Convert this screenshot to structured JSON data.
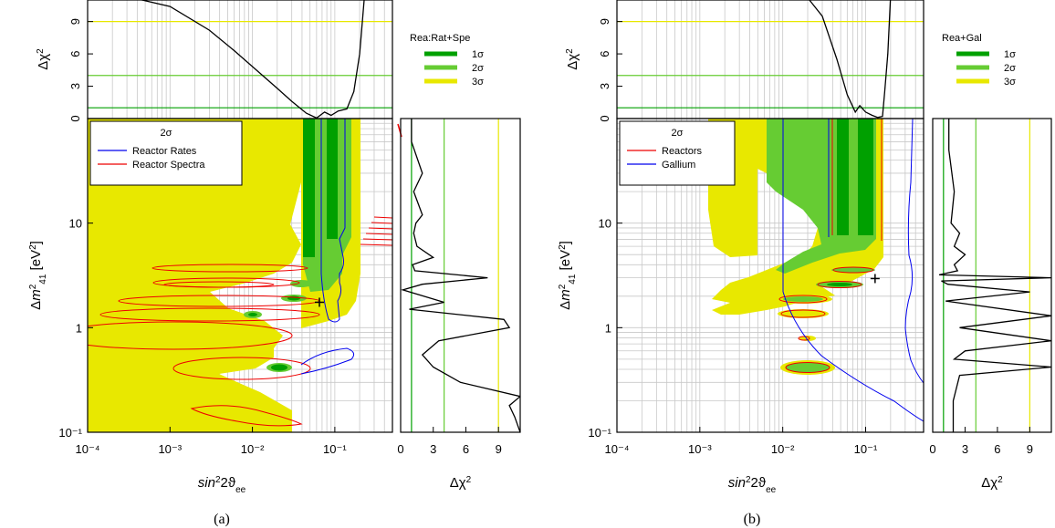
{
  "chart_data": [
    {
      "panel": "(a)",
      "type": "contour",
      "caption": "(a)",
      "xlabel_main": "sin²2ϑee",
      "ylabel_main": "Δm²41 [eV²]",
      "xlabel_side": "Δχ²",
      "ylabel_top": "Δχ²",
      "xaxis": {
        "scale": "log",
        "range": [
          0.0001,
          0.5
        ],
        "tick_labels": [
          "10⁻⁴",
          "10⁻³",
          "10⁻²",
          "10⁻¹"
        ]
      },
      "yaxis": {
        "scale": "log",
        "range": [
          0.1,
          100
        ],
        "tick_labels": [
          "10⁻¹",
          "1",
          "10"
        ]
      },
      "chi2_axis": {
        "range": [
          0,
          11
        ],
        "tick_labels": [
          "0",
          "3",
          "6",
          "9"
        ]
      },
      "sigma_levels": [
        1,
        4,
        9
      ],
      "legend_main": {
        "title": "2σ",
        "items": [
          {
            "label": "Reactor Rates",
            "color": "#0000ee"
          },
          {
            "label": "Reactor Spectra",
            "color": "#ee0000"
          }
        ]
      },
      "legend_conf": {
        "title": "Rea:Rat+Spe",
        "items": [
          {
            "label": "1σ",
            "color": "#00a000"
          },
          {
            "label": "2σ",
            "color": "#66cc33"
          },
          {
            "label": "3σ",
            "color": "#e8e800"
          }
        ]
      },
      "best_fit": {
        "x": 0.065,
        "y": 1.75
      },
      "top_curve": [
        [
          0.0001,
          11.5
        ],
        [
          0.0004,
          11.1
        ],
        [
          0.001,
          10.4
        ],
        [
          0.003,
          8.2
        ],
        [
          0.006,
          6.3
        ],
        [
          0.012,
          4.3
        ],
        [
          0.02,
          2.8
        ],
        [
          0.03,
          1.6
        ],
        [
          0.045,
          0.5
        ],
        [
          0.06,
          0.05
        ],
        [
          0.075,
          0.6
        ],
        [
          0.09,
          0.3
        ],
        [
          0.11,
          0.7
        ],
        [
          0.14,
          0.9
        ],
        [
          0.17,
          2.5
        ],
        [
          0.2,
          6
        ],
        [
          0.23,
          11.5
        ]
      ],
      "side_curve": [
        [
          1.0,
          100
        ],
        [
          1.0,
          60
        ],
        [
          2.0,
          30
        ],
        [
          1.2,
          20
        ],
        [
          2.0,
          12
        ],
        [
          1.4,
          10
        ],
        [
          1.2,
          8
        ],
        [
          1.5,
          6
        ],
        [
          3,
          4.7
        ],
        [
          1.1,
          4
        ],
        [
          1.3,
          3.5
        ],
        [
          8,
          3.0
        ],
        [
          2,
          2.6
        ],
        [
          0.2,
          2.3
        ],
        [
          4,
          1.75
        ],
        [
          0.8,
          1.5
        ],
        [
          9.5,
          1.2
        ],
        [
          10,
          1.0
        ],
        [
          3.5,
          0.75
        ],
        [
          2,
          0.55
        ],
        [
          3,
          0.42
        ],
        [
          5.5,
          0.3
        ],
        [
          11,
          0.22
        ],
        [
          10,
          0.18
        ],
        [
          10.5,
          0.14
        ],
        [
          11,
          0.1
        ]
      ]
    },
    {
      "panel": "(b)",
      "type": "contour",
      "caption": "(b)",
      "xlabel_main": "sin²2ϑee",
      "ylabel_main": "Δm²41 [eV²]",
      "xlabel_side": "Δχ²",
      "ylabel_top": "Δχ²",
      "xaxis": {
        "scale": "log",
        "range": [
          0.0001,
          0.5
        ],
        "tick_labels": [
          "10⁻⁴",
          "10⁻³",
          "10⁻²",
          "10⁻¹"
        ]
      },
      "yaxis": {
        "scale": "log",
        "range": [
          0.1,
          100
        ],
        "tick_labels": [
          "10⁻¹",
          "1",
          "10"
        ]
      },
      "chi2_axis": {
        "range": [
          0,
          11
        ],
        "tick_labels": [
          "0",
          "3",
          "6",
          "9"
        ]
      },
      "sigma_levels": [
        1,
        4,
        9
      ],
      "legend_main": {
        "title": "2σ",
        "items": [
          {
            "label": "Reactors",
            "color": "#ee0000"
          },
          {
            "label": "Gallium",
            "color": "#0000ee"
          }
        ]
      },
      "legend_conf": {
        "title": "Rea+Gal",
        "items": [
          {
            "label": "1σ",
            "color": "#00a000"
          },
          {
            "label": "2σ",
            "color": "#66cc33"
          },
          {
            "label": "3σ",
            "color": "#e8e800"
          }
        ]
      },
      "best_fit": {
        "x": 0.13,
        "y": 2.95
      },
      "top_curve": [
        [
          0.0001,
          11.5
        ],
        [
          0.02,
          11.2
        ],
        [
          0.03,
          9.5
        ],
        [
          0.045,
          5.5
        ],
        [
          0.06,
          2.2
        ],
        [
          0.075,
          0.6
        ],
        [
          0.085,
          1.2
        ],
        [
          0.1,
          0.6
        ],
        [
          0.12,
          0.3
        ],
        [
          0.14,
          0.1
        ],
        [
          0.16,
          0.2
        ],
        [
          0.17,
          2.5
        ],
        [
          0.185,
          6
        ],
        [
          0.2,
          11.5
        ]
      ],
      "side_curve": [
        [
          1.5,
          100
        ],
        [
          1.5,
          50
        ],
        [
          2,
          20
        ],
        [
          1.7,
          10
        ],
        [
          2.5,
          8
        ],
        [
          2.0,
          6
        ],
        [
          3,
          5
        ],
        [
          2,
          4
        ],
        [
          2.3,
          3.5
        ],
        [
          0.6,
          3.2
        ],
        [
          11,
          3.0
        ],
        [
          0.8,
          2.8
        ],
        [
          1.4,
          2.6
        ],
        [
          9,
          2.2
        ],
        [
          1.2,
          1.8
        ],
        [
          11,
          1.3
        ],
        [
          2.5,
          1.0
        ],
        [
          11,
          0.75
        ],
        [
          3,
          0.6
        ],
        [
          2,
          0.5
        ],
        [
          11,
          0.42
        ],
        [
          2.5,
          0.35
        ],
        [
          1.9,
          0.2
        ],
        [
          1.9,
          0.1
        ]
      ]
    }
  ]
}
